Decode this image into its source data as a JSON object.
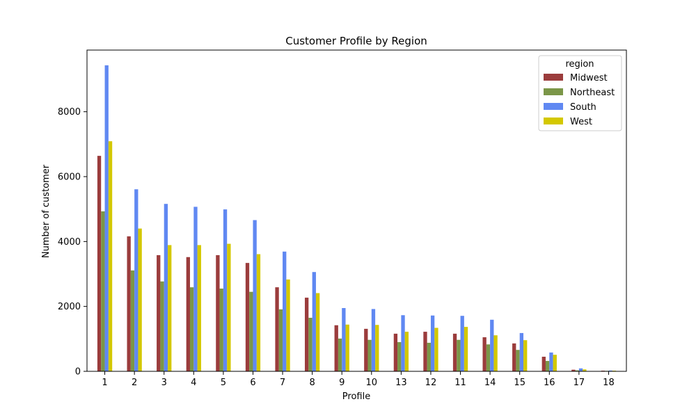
{
  "chart_data": {
    "type": "bar",
    "title": "Customer Profile by Region",
    "xlabel": "Profile",
    "ylabel": "Number of customer",
    "ylim": [
      0,
      9900
    ],
    "yticks": [
      0,
      2000,
      4000,
      6000,
      8000
    ],
    "grid": false,
    "legend": {
      "title": "region",
      "placement": "top-right"
    },
    "categories": [
      "1",
      "2",
      "3",
      "4",
      "5",
      "6",
      "7",
      "8",
      "9",
      "10",
      "13",
      "12",
      "11",
      "14",
      "15",
      "16",
      "17",
      "18"
    ],
    "series": [
      {
        "name": "Midwest",
        "color": "#9b3c3c",
        "values": [
          6640,
          4160,
          3580,
          3520,
          3580,
          3340,
          2590,
          2270,
          1420,
          1310,
          1160,
          1220,
          1160,
          1050,
          860,
          450,
          50,
          20
        ]
      },
      {
        "name": "Northeast",
        "color": "#7b9648",
        "values": [
          4930,
          3110,
          2770,
          2590,
          2550,
          2450,
          1910,
          1650,
          1010,
          970,
          900,
          880,
          970,
          830,
          660,
          320,
          30,
          15
        ]
      },
      {
        "name": "South",
        "color": "#6088f2",
        "values": [
          9430,
          5610,
          5160,
          5070,
          4990,
          4660,
          3690,
          3060,
          1950,
          1920,
          1730,
          1720,
          1710,
          1590,
          1180,
          580,
          90,
          25
        ]
      },
      {
        "name": "West",
        "color": "#d4c800",
        "values": [
          7090,
          4400,
          3890,
          3890,
          3930,
          3610,
          2830,
          2410,
          1440,
          1430,
          1220,
          1340,
          1370,
          1110,
          960,
          510,
          60,
          20
        ]
      }
    ]
  }
}
